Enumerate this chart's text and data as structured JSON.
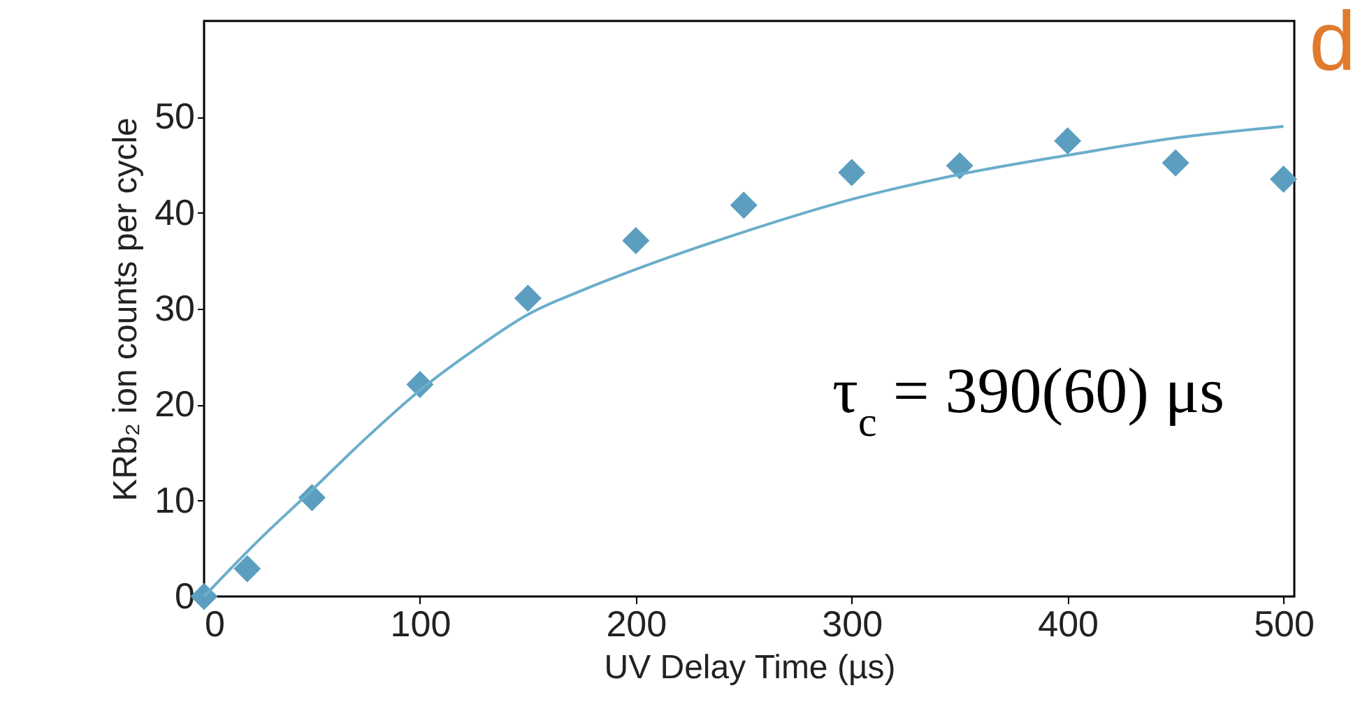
{
  "chart_data": {
    "type": "scatter",
    "xlabel": "UV Delay Time (µs)",
    "ylabel": "KRb₂ ion counts per cycle",
    "xlim": [
      0,
      505
    ],
    "ylim": [
      0,
      60
    ],
    "xticks": [
      0,
      100,
      200,
      300,
      400,
      500
    ],
    "yticks": [
      0,
      10,
      20,
      30,
      40,
      50
    ],
    "grid": false,
    "series": [
      {
        "marker": "diamond",
        "color": "#5b9ec0",
        "x": [
          0,
          20,
          50,
          100,
          150,
          200,
          250,
          300,
          350,
          400,
          450,
          500
        ],
        "values": [
          0,
          2.9,
          10.3,
          22.1,
          31.1,
          37.1,
          40.8,
          44.2,
          44.9,
          47.5,
          45.2,
          43.5
        ]
      },
      {
        "type": "line",
        "color": "#6aaecb",
        "x": [
          0,
          25,
          50,
          75,
          100,
          125,
          150,
          175,
          200,
          250,
          300,
          350,
          400,
          450,
          500
        ],
        "values": [
          0,
          5.8,
          11.1,
          16.5,
          21.5,
          25.7,
          29.4,
          31.9,
          34.1,
          38,
          41.4,
          44,
          46,
          47.8,
          49
        ]
      }
    ],
    "annotations": [
      "τ$_{c}$ = 390(60) μs",
      "d"
    ]
  }
}
